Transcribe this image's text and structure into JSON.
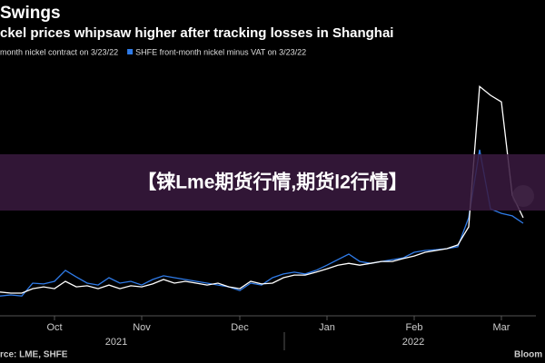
{
  "chart_data": {
    "type": "line",
    "title": "Swings",
    "subtitle": "ckel prices whipsaw higher after tracking losses in Shanghai",
    "categories": [
      null,
      null,
      null,
      null,
      null,
      "Oct",
      null,
      null,
      null,
      null,
      null,
      null,
      null,
      "Nov",
      null,
      null,
      null,
      null,
      null,
      null,
      null,
      null,
      "Dec",
      null,
      null,
      null,
      null,
      null,
      null,
      null,
      "Jan",
      null,
      null,
      null,
      null,
      null,
      null,
      null,
      "Feb",
      null,
      null,
      null,
      null,
      null,
      null,
      null,
      "Mar",
      null,
      null
    ],
    "year_labels": [
      "2021",
      "2022"
    ],
    "series": [
      {
        "name": "month nickel contract on 3/23/22",
        "color": "#ffffff",
        "values": [
          19800,
          19650,
          19650,
          20250,
          20500,
          20250,
          21250,
          20500,
          20650,
          20250,
          20750,
          20250,
          20650,
          20500,
          20900,
          21500,
          21000,
          21250,
          21000,
          20750,
          21000,
          20500,
          20250,
          21250,
          20900,
          21000,
          21750,
          22100,
          22100,
          22500,
          22950,
          23450,
          23700,
          23450,
          23700,
          23950,
          23950,
          24350,
          24700,
          25200,
          25450,
          25700,
          26200,
          28650,
          47750,
          46550,
          45650,
          32950,
          29900
        ]
      },
      {
        "name": "SHFE front-month nickel minus VAT on 3/23/22",
        "color": "#2f7be8",
        "values": [
          19250,
          19400,
          19250,
          21000,
          20900,
          21250,
          22750,
          21850,
          21000,
          20750,
          21750,
          21000,
          21250,
          20750,
          21500,
          22000,
          21750,
          21500,
          21250,
          21000,
          20750,
          20500,
          20000,
          21000,
          20750,
          21750,
          22250,
          22500,
          22250,
          22750,
          23450,
          24200,
          24950,
          23950,
          23700,
          23950,
          24200,
          24450,
          25200,
          25450,
          25550,
          25700,
          25950,
          29900,
          39150,
          31100,
          30500,
          30150,
          29150
        ]
      }
    ],
    "ylim": [
      15700,
      52100
    ],
    "source": "rce: LME, SHFE",
    "brand": "Bloom"
  },
  "banner": "【铼Lme期货行情,期货l2行情】"
}
